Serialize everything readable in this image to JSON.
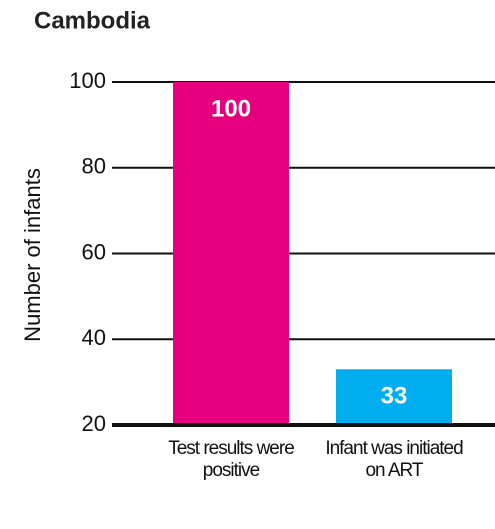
{
  "chart_data": {
    "type": "bar",
    "title": "Cambodia",
    "y_label": "Number of infants",
    "categories": [
      "Test results were positive",
      "Infant was initiated on ART"
    ],
    "values": [
      100,
      33
    ],
    "colors": [
      "#e6007e",
      "#00aeef"
    ],
    "ylim": [
      20,
      100
    ],
    "yticks": [
      20,
      40,
      60,
      80,
      100
    ],
    "grid": true
  }
}
